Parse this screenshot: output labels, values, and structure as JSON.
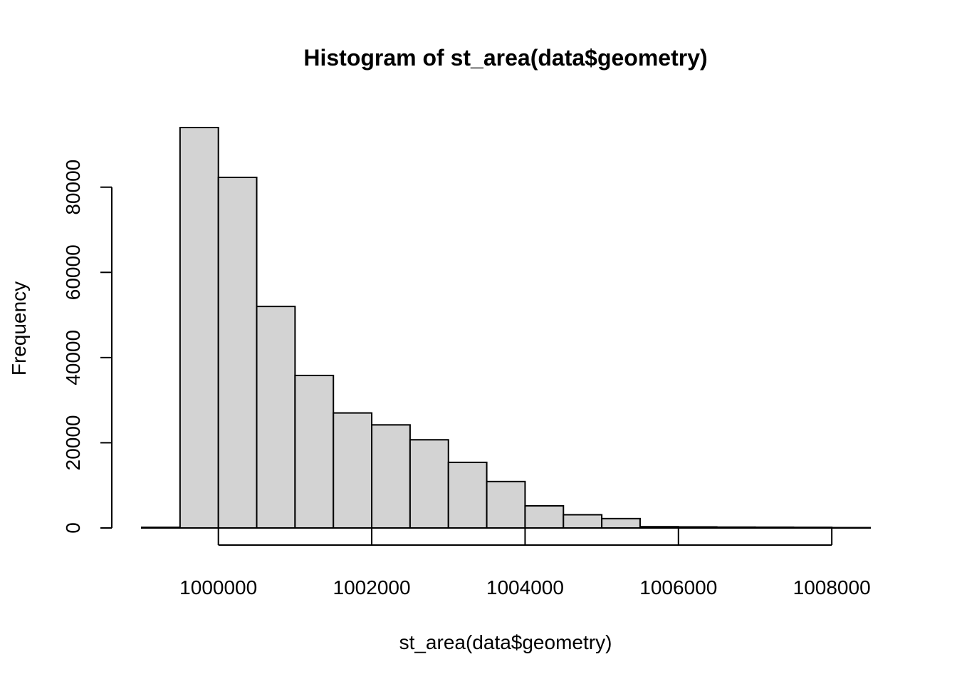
{
  "chart_data": {
    "type": "bar",
    "title": "Histogram of st_area(data$geometry)",
    "xlabel": "st_area(data$geometry)",
    "ylabel": "Frequency",
    "bin_edges": [
      999000,
      999500,
      1000000,
      1000500,
      1001000,
      1001500,
      1002000,
      1002500,
      1003000,
      1003500,
      1004000,
      1004500,
      1005000,
      1005500,
      1006000,
      1006500,
      1007000,
      1007500,
      1008000,
      1008500
    ],
    "values": [
      150,
      94000,
      82300,
      52000,
      35800,
      27000,
      24200,
      20700,
      15400,
      10900,
      5200,
      3100,
      2200,
      300,
      250,
      200,
      180,
      150,
      80
    ],
    "xlim": [
      999000,
      1008500
    ],
    "ylim": [
      0,
      94000
    ],
    "x_ticks": [
      1000000,
      1002000,
      1004000,
      1006000,
      1008000
    ],
    "x_tick_labels": [
      "1000000",
      "1002000",
      "1004000",
      "1006000",
      "1008000"
    ],
    "y_ticks": [
      0,
      20000,
      40000,
      60000,
      80000
    ],
    "y_tick_labels": [
      "0",
      "20000",
      "40000",
      "60000",
      "80000"
    ],
    "bar_fill": "#d3d3d3",
    "bar_stroke": "#000000",
    "grid": false
  }
}
